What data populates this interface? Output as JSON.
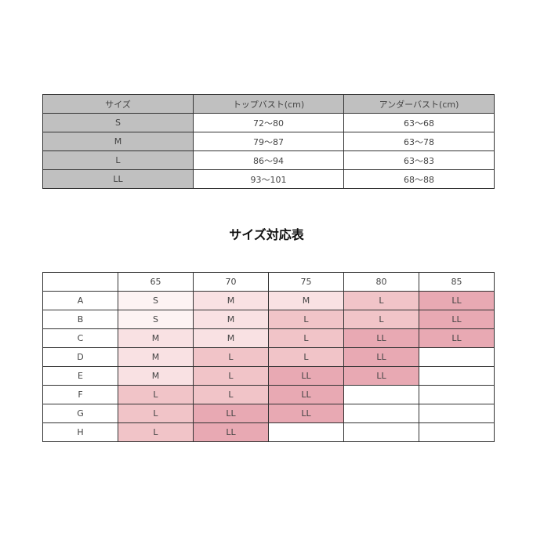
{
  "size_table": {
    "headers": [
      "サイズ",
      "トップバスト(cm)",
      "アンダーバスト(cm)"
    ],
    "rows": [
      [
        "S",
        "72〜80",
        "63〜68"
      ],
      [
        "M",
        "79〜87",
        "63〜78"
      ],
      [
        "L",
        "86〜94",
        "63〜83"
      ],
      [
        "LL",
        "93〜101",
        "68〜88"
      ]
    ]
  },
  "chart_title": "サイズ対応表",
  "correspondence": {
    "columns": [
      "65",
      "70",
      "75",
      "80",
      "85"
    ],
    "rows": [
      {
        "cup": "A",
        "sizes": [
          "S",
          "M",
          "M",
          "L",
          "LL"
        ]
      },
      {
        "cup": "B",
        "sizes": [
          "S",
          "M",
          "L",
          "L",
          "LL"
        ]
      },
      {
        "cup": "C",
        "sizes": [
          "M",
          "M",
          "L",
          "LL",
          "LL"
        ]
      },
      {
        "cup": "D",
        "sizes": [
          "M",
          "L",
          "L",
          "LL",
          ""
        ]
      },
      {
        "cup": "E",
        "sizes": [
          "M",
          "L",
          "LL",
          "LL",
          ""
        ]
      },
      {
        "cup": "F",
        "sizes": [
          "L",
          "L",
          "LL",
          "",
          ""
        ]
      },
      {
        "cup": "G",
        "sizes": [
          "L",
          "LL",
          "LL",
          "",
          ""
        ]
      },
      {
        "cup": "H",
        "sizes": [
          "L",
          "LL",
          "",
          "",
          ""
        ]
      }
    ]
  },
  "colors": {
    "header_gray": "#c0c0c0",
    "S": "#fdf3f3",
    "M": "#f9e1e3",
    "L": "#f1c4c8",
    "LL": "#e8a9b3"
  }
}
